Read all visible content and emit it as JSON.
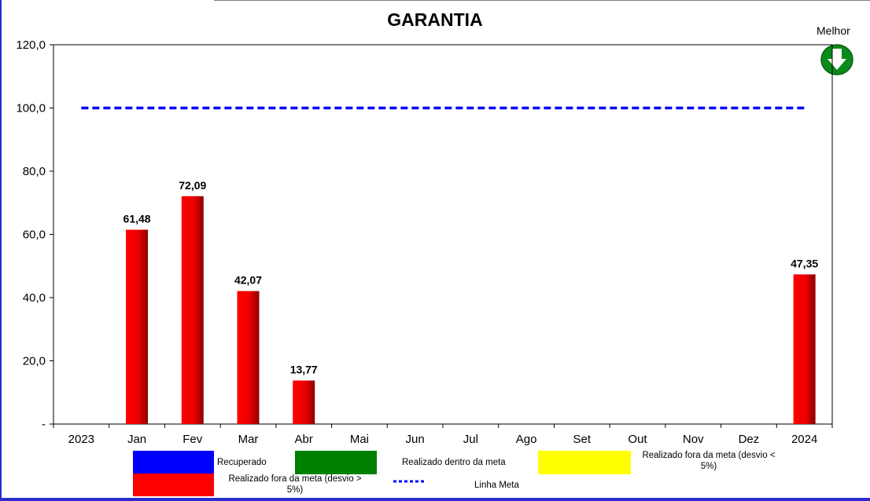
{
  "chart_data": {
    "type": "bar",
    "title": "GARANTIA",
    "categories": [
      "2023",
      "Jan",
      "Fev",
      "Mar",
      "Abr",
      "Mai",
      "Jun",
      "Jul",
      "Ago",
      "Set",
      "Out",
      "Nov",
      "Dez",
      "2024"
    ],
    "series": [
      {
        "name": "Realizado fora da meta (desvio > 5%)",
        "color": "#ff0000",
        "values": [
          null,
          61.48,
          72.09,
          42.07,
          13.77,
          null,
          null,
          null,
          null,
          null,
          null,
          null,
          null,
          47.35
        ],
        "labels": [
          "",
          "61,48",
          "72,09",
          "42,07",
          "13,77",
          "",
          "",
          "",
          "",
          "",
          "",
          "",
          "",
          "47,35"
        ]
      },
      {
        "name": "Linha Meta",
        "type": "line",
        "style": "dotted",
        "color": "#0000ff",
        "value": 100
      }
    ],
    "ylim": [
      0,
      120
    ],
    "yticks": [
      0,
      20,
      40,
      60,
      80,
      100,
      120
    ],
    "ytick_labels": [
      "-",
      "20,0",
      "40,0",
      "60,0",
      "80,0",
      "100,0",
      "120,0"
    ],
    "grid": false,
    "legend": {
      "placement": "bottom",
      "items": [
        {
          "label": "Recuperado",
          "color": "#0000ff"
        },
        {
          "label": "Realizado dentro da meta",
          "color": "#008000"
        },
        {
          "label": "Realizado fora da meta (desvio < 5%)",
          "color": "#ffff00"
        },
        {
          "label": "Realizado fora da meta (desvio > 5%)",
          "color": "#ff0000"
        },
        {
          "label": "Linha Meta",
          "color": "#0000ff"
        }
      ]
    }
  },
  "indicator": {
    "label": "Melhor",
    "icon": "down-arrow-icon",
    "color": "#008000"
  }
}
